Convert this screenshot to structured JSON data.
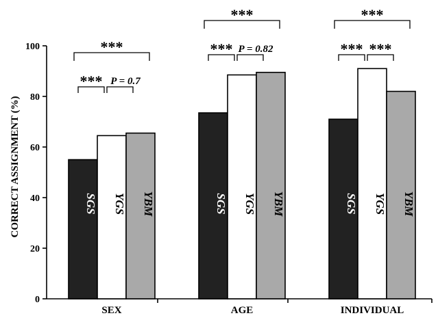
{
  "chart_data": {
    "type": "bar",
    "ylabel": "CORRECT ASSIGNMENT (%)",
    "ylim": [
      0,
      100
    ],
    "yticks": [
      0,
      20,
      40,
      60,
      80,
      100
    ],
    "categories": [
      "SEX",
      "AGE",
      "INDIVIDUAL"
    ],
    "series": [
      {
        "name": "SGS",
        "color": "#222222",
        "label_color": "#ffffff",
        "values": [
          55,
          73.5,
          71
        ]
      },
      {
        "name": "YGS",
        "color": "#ffffff",
        "label_color": "#000000",
        "values": [
          64.5,
          88.5,
          91
        ]
      },
      {
        "name": "YBM",
        "color": "#a9a9a9",
        "label_color": "#000000",
        "values": [
          65.5,
          89.5,
          82
        ]
      }
    ],
    "grid": false,
    "legend": "none (series names printed inside bars)",
    "annotations": [
      {
        "category": "SEX",
        "from": "SGS",
        "to": "YBM",
        "text": "***",
        "level": "top"
      },
      {
        "category": "SEX",
        "from": "SGS",
        "to": "YGS",
        "text": "***",
        "level": "low"
      },
      {
        "category": "SEX",
        "from": "YGS",
        "to": "YBM",
        "text": "P = 0.7",
        "level": "low"
      },
      {
        "category": "AGE",
        "from": "SGS",
        "to": "YBM",
        "text": "***",
        "level": "top"
      },
      {
        "category": "AGE",
        "from": "SGS",
        "to": "YGS",
        "text": "***",
        "level": "low"
      },
      {
        "category": "AGE",
        "from": "YGS",
        "to": "YBM",
        "text": "P = 0.82",
        "level": "low"
      },
      {
        "category": "INDIVIDUAL",
        "from": "SGS",
        "to": "YBM",
        "text": "***",
        "level": "top"
      },
      {
        "category": "INDIVIDUAL",
        "from": "SGS",
        "to": "YGS",
        "text": "***",
        "level": "low"
      },
      {
        "category": "INDIVIDUAL",
        "from": "YGS",
        "to": "YBM",
        "text": "***",
        "level": "low"
      }
    ]
  }
}
